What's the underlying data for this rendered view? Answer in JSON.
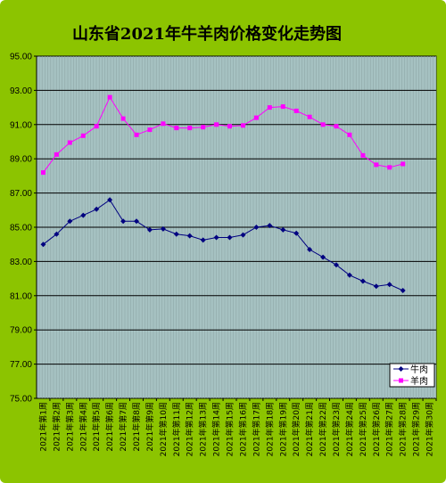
{
  "chart_data": {
    "type": "line",
    "title": "山东省2021年牛羊肉价格变化走势图",
    "ylim": [
      75.0,
      95.0
    ],
    "yticks": [
      "75.00",
      "77.00",
      "79.00",
      "81.00",
      "83.00",
      "85.00",
      "87.00",
      "89.00",
      "91.00",
      "93.00",
      "95.00"
    ],
    "categories": [
      "2021年第1周",
      "2021年第2周",
      "2021年第3周",
      "2021年第4周",
      "2021年第5周",
      "2021年第6周",
      "2021年第7周",
      "2021年第8周",
      "2021年第9周",
      "2021年第10周",
      "2021年第11周",
      "2021年第12周",
      "2021年第13周",
      "2021年第14周",
      "2021年第15周",
      "2021年第16周",
      "2021年第17周",
      "2021年第18周",
      "2021年第19周",
      "2021年第20周",
      "2021年第21周",
      "2021年第22周",
      "2021年第23周",
      "2021年第24周",
      "2021年第25周",
      "2021年第26周",
      "2021年第27周",
      "2021年第28周",
      "2021年第29周",
      "2021年第30周"
    ],
    "series": [
      {
        "name": "牛肉",
        "color": "#000080",
        "marker": "diamond",
        "values": [
          84.0,
          84.6,
          85.35,
          85.7,
          86.05,
          86.6,
          85.35,
          85.35,
          84.85,
          84.9,
          84.6,
          84.5,
          84.25,
          84.4,
          84.4,
          84.55,
          85.0,
          85.1,
          84.85,
          84.65,
          83.7,
          83.25,
          82.8,
          82.2,
          81.85,
          81.55,
          81.65,
          81.3,
          null,
          null
        ]
      },
      {
        "name": "羊肉",
        "color": "#ff00ff",
        "marker": "square",
        "values": [
          88.2,
          89.25,
          89.95,
          90.35,
          90.9,
          92.6,
          91.35,
          90.4,
          90.7,
          91.05,
          90.8,
          90.8,
          90.85,
          91.0,
          90.9,
          90.95,
          91.4,
          92.0,
          92.05,
          91.8,
          91.45,
          91.0,
          90.9,
          90.4,
          89.2,
          88.65,
          88.5,
          88.7,
          null,
          null
        ]
      }
    ],
    "grid": true,
    "legend_position": "bottom-right",
    "plot_background": "#a6c2c2"
  }
}
